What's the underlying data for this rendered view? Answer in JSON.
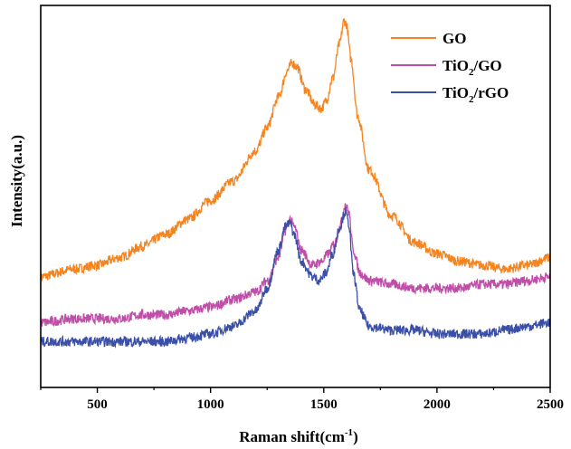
{
  "chart_data": {
    "type": "line",
    "title": "",
    "xlabel": "Raman shift(cm",
    "xlabel_sup": "-1",
    "xlabel_end": ")",
    "ylabel": "Intensity(a.u.)",
    "xlim": [
      250,
      2500
    ],
    "ylim": [
      0,
      100
    ],
    "y_ticks_labeled": false,
    "x_ticks": [
      500,
      1000,
      1500,
      2000,
      2500
    ],
    "x_tick_labels": [
      "500",
      "1000",
      "1500",
      "2000",
      "2500"
    ],
    "grid": false,
    "legend_position": "top-right",
    "series": [
      {
        "name": "GO",
        "name_parts": [
          "GO",
          "",
          ""
        ],
        "color": "#f5841f",
        "x": [
          250,
          400,
          500,
          600,
          700,
          800,
          900,
          1000,
          1100,
          1200,
          1250,
          1300,
          1340,
          1360,
          1380,
          1420,
          1460,
          1490,
          1510,
          1540,
          1570,
          1590,
          1600,
          1620,
          1650,
          1700,
          1800,
          1900,
          2000,
          2100,
          2200,
          2300,
          2400,
          2500
        ],
        "values": [
          29,
          31,
          32,
          34,
          37,
          40,
          44,
          49,
          54,
          62,
          68,
          76,
          83,
          85,
          84,
          78,
          74,
          73,
          75,
          81,
          90,
          96,
          95,
          86,
          71,
          57,
          45,
          38,
          35,
          33,
          32,
          31,
          32,
          34
        ]
      },
      {
        "name": "TiO2/GO",
        "name_parts": [
          "TiO",
          "2",
          "/GO"
        ],
        "color": "#c04ea8",
        "x": [
          250,
          400,
          500,
          600,
          700,
          800,
          900,
          1000,
          1100,
          1200,
          1250,
          1300,
          1330,
          1350,
          1370,
          1400,
          1450,
          1490,
          1520,
          1550,
          1575,
          1595,
          1610,
          1630,
          1660,
          1700,
          1800,
          1900,
          2000,
          2100,
          2200,
          2300,
          2400,
          2500
        ],
        "values": [
          17,
          18,
          18,
          18,
          19,
          19,
          20,
          21,
          23,
          25,
          28,
          34,
          41,
          44,
          42,
          36,
          32,
          33,
          35,
          38,
          43,
          48,
          46,
          36,
          30,
          28,
          27,
          26,
          26,
          26,
          27,
          27,
          28,
          29
        ]
      },
      {
        "name": "TiO2/rGO",
        "name_parts": [
          "TiO",
          "2",
          "/rGO"
        ],
        "color": "#3a4fa8",
        "x": [
          250,
          400,
          500,
          600,
          700,
          800,
          900,
          1000,
          1100,
          1200,
          1250,
          1300,
          1330,
          1350,
          1370,
          1400,
          1450,
          1480,
          1510,
          1540,
          1570,
          1595,
          1610,
          1630,
          1660,
          1700,
          1800,
          1900,
          2000,
          2100,
          2200,
          2300,
          2400,
          2500
        ],
        "values": [
          12,
          12,
          12,
          12,
          12,
          12,
          13,
          14,
          16,
          20,
          26,
          36,
          42,
          43,
          40,
          33,
          29,
          28,
          30,
          35,
          42,
          46,
          43,
          30,
          20,
          16,
          15,
          15,
          14,
          14,
          14,
          15,
          16,
          17
        ]
      }
    ]
  }
}
